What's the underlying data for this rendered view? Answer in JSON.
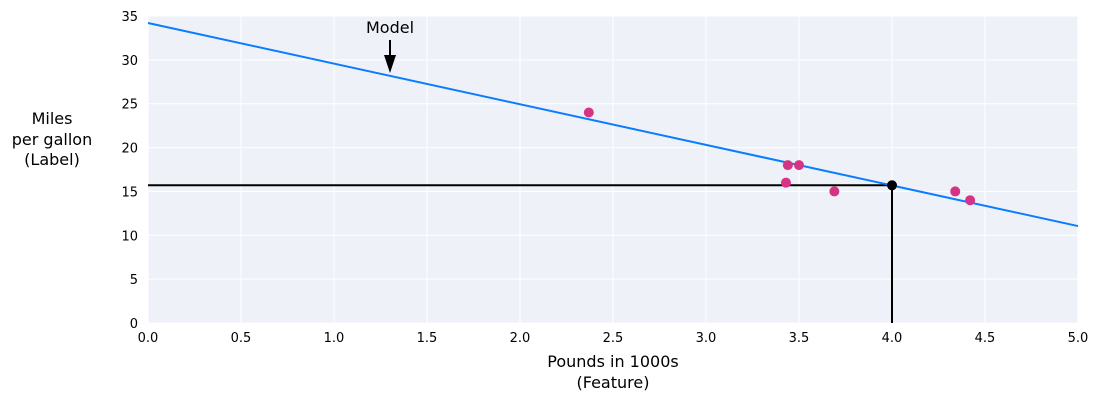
{
  "chart_data": {
    "type": "scatter",
    "xlabel": [
      "Pounds in 1000s",
      "(Feature)"
    ],
    "ylabel": [
      "Miles",
      "per gallon",
      "(Label)"
    ],
    "xlim": [
      0,
      5
    ],
    "ylim": [
      0,
      35
    ],
    "xticks": [
      "0.0",
      "0.5",
      "1.0",
      "1.5",
      "2.0",
      "2.5",
      "3.0",
      "3.5",
      "4.0",
      "4.5",
      "5.0"
    ],
    "yticks": [
      "0",
      "5",
      "10",
      "15",
      "20",
      "25",
      "30",
      "35"
    ],
    "grid": true,
    "points": [
      {
        "x": 2.37,
        "y": 24
      },
      {
        "x": 3.44,
        "y": 18
      },
      {
        "x": 3.5,
        "y": 18
      },
      {
        "x": 3.43,
        "y": 16
      },
      {
        "x": 3.69,
        "y": 15
      },
      {
        "x": 4.34,
        "y": 15
      },
      {
        "x": 4.42,
        "y": 14
      }
    ],
    "model_line": {
      "x": [
        0,
        5
      ],
      "y": [
        34.2,
        11.05
      ]
    },
    "prediction": {
      "x": 4.0,
      "y": 15.7
    },
    "annotation": "Model",
    "colors": {
      "points": "#d63384",
      "line": "#0a7cff",
      "prediction": "#000000",
      "background": "#eef2f8"
    }
  }
}
